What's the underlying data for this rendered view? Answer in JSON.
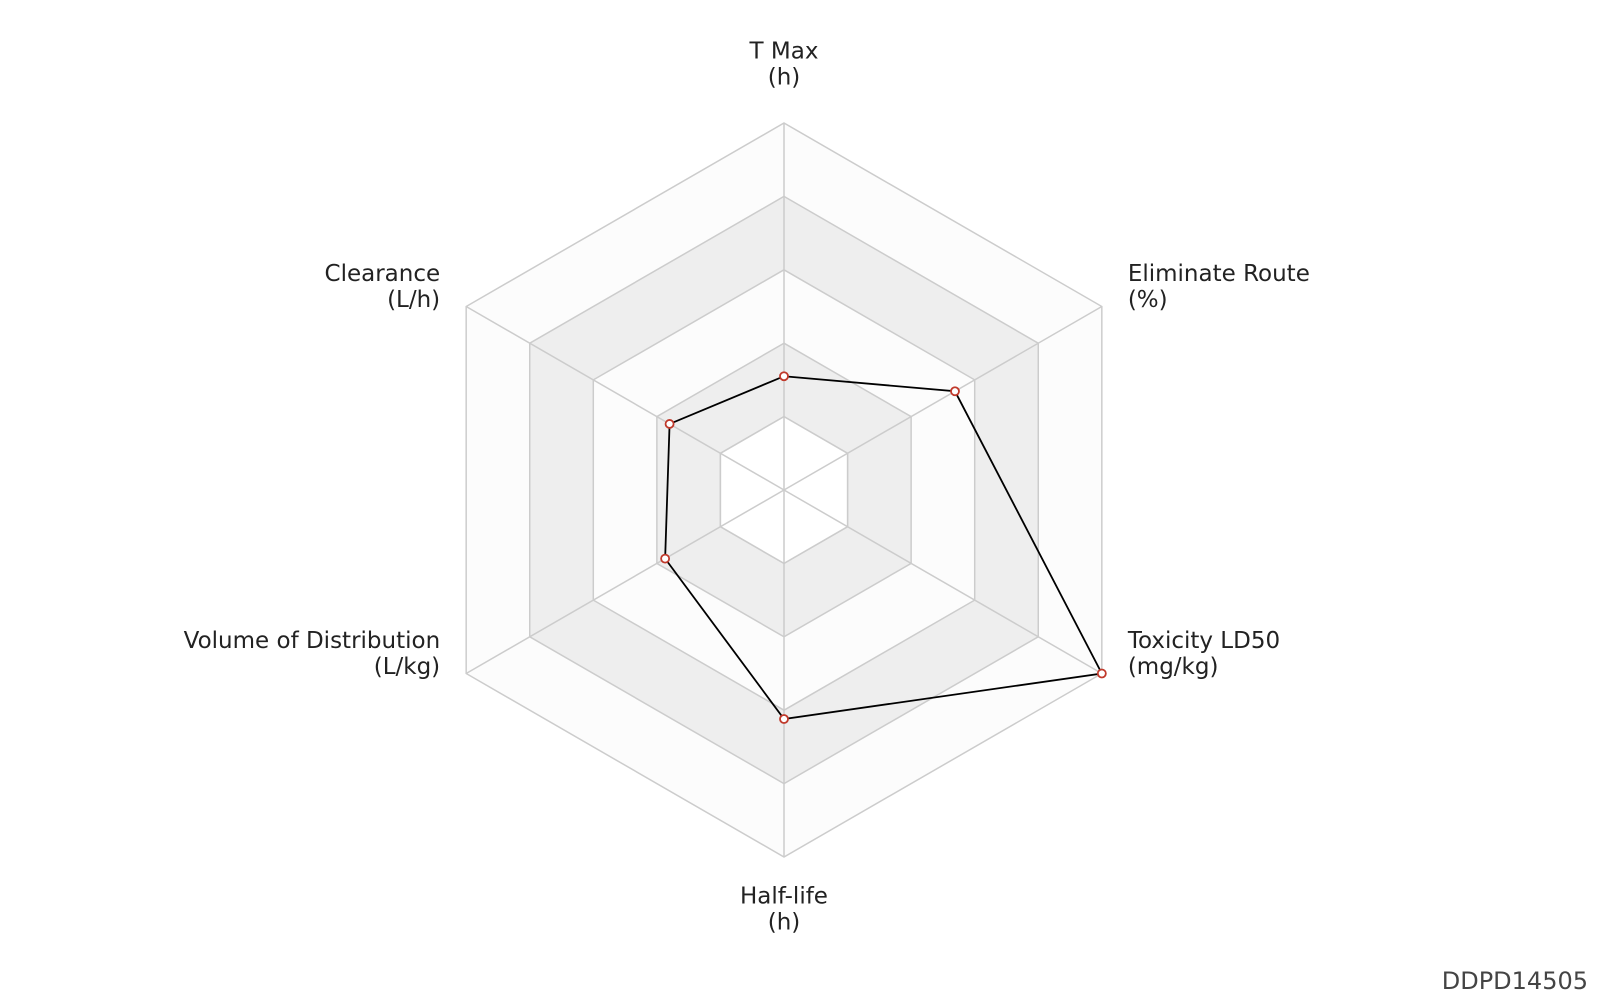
{
  "chart_data": {
    "type": "radar",
    "categories": [
      "T Max",
      "Eliminate Route",
      "Toxicity LD50",
      "Half-life",
      "Volume of Distribution",
      "Clearance"
    ],
    "units": [
      "(h)",
      "(%)",
      "(mg/kg)",
      "(h)",
      "(L/kg)",
      "(L/h)"
    ],
    "values": [
      1.55,
      2.69,
      5.0,
      3.12,
      1.87,
      1.8
    ],
    "rlim": [
      0,
      5
    ],
    "rticks": [
      1,
      2,
      3,
      4,
      5
    ],
    "line_color": "#000000",
    "marker_color": "#c0392b",
    "grid": true,
    "watermark": "DDPD14505"
  }
}
